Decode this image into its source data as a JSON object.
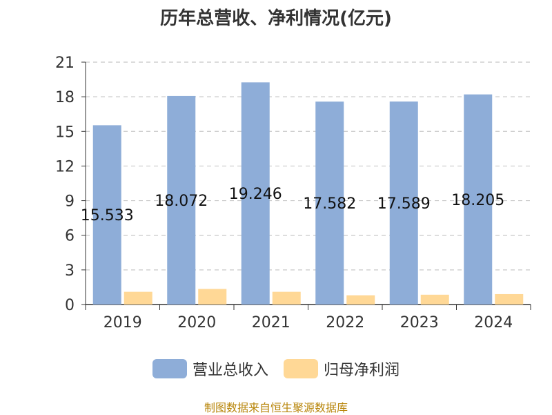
{
  "chart_data": {
    "type": "bar",
    "title": "历年总营收、净利情况(亿元)",
    "categories": [
      "2019",
      "2020",
      "2021",
      "2022",
      "2023",
      "2024"
    ],
    "series": [
      {
        "name": "营业总收入",
        "color": "#8eadd8",
        "values": [
          15.533,
          18.072,
          19.246,
          17.582,
          17.589,
          18.205
        ],
        "labels": [
          "15.533",
          "18.072",
          "19.246",
          "17.582",
          "17.589",
          "18.205"
        ]
      },
      {
        "name": "归母净利润",
        "color": "#ffd896",
        "values": [
          1.1,
          1.35,
          1.1,
          0.8,
          0.85,
          0.9
        ]
      }
    ],
    "yticks": [
      "0",
      "3",
      "6",
      "9",
      "12",
      "15",
      "18",
      "21"
    ],
    "ylim": [
      0,
      21
    ],
    "grid": true,
    "legend_position": "bottom"
  },
  "source_text": "制图数据来自恒生聚源数据库"
}
